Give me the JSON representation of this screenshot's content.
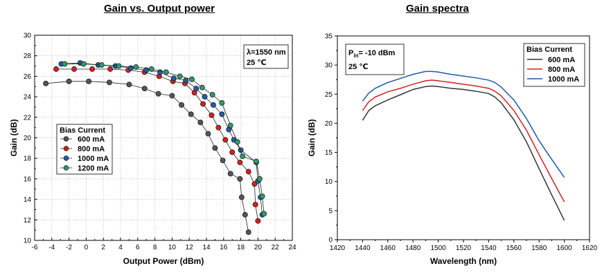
{
  "titles": {
    "left": "Gain vs. Output power",
    "right": "Gain spectra"
  },
  "chart_data": [
    {
      "type": "scatter",
      "title": "Gain vs. Output power",
      "xlabel": "Output Power (dBm)",
      "ylabel": "Gain (dB)",
      "xlim": [
        -6,
        24
      ],
      "ylim": [
        10,
        30
      ],
      "xticks": [
        "-6",
        "-4",
        "-2",
        "0",
        "2",
        "4",
        "6",
        "8",
        "10",
        "12",
        "14",
        "16",
        "18",
        "20",
        "22",
        "24"
      ],
      "yticks": [
        "10",
        "12",
        "14",
        "16",
        "18",
        "20",
        "22",
        "24",
        "26",
        "28",
        "30"
      ],
      "grid": true,
      "legend_title": "Bias Current",
      "legend_position": "lower-left",
      "annotation": [
        "λ=1550 nm",
        "25 ℃"
      ],
      "series": [
        {
          "name": "600 mA",
          "color": "#555555",
          "x": [
            -4.7,
            -2.0,
            0.3,
            2.7,
            5.0,
            6.8,
            8.4,
            10.0,
            11.1,
            12.2,
            13.3,
            14.2,
            15.0,
            15.9,
            16.8,
            17.9,
            18.1,
            18.5,
            18.9
          ],
          "y": [
            25.3,
            25.5,
            25.5,
            25.4,
            25.2,
            24.8,
            24.3,
            24.1,
            23.2,
            22.3,
            21.5,
            20.4,
            19.0,
            17.8,
            16.5,
            16.0,
            14.2,
            12.5,
            10.8
          ]
        },
        {
          "name": "800 mA",
          "color": "#d42020",
          "x": [
            -3.5,
            -1.4,
            0.7,
            2.8,
            4.9,
            6.8,
            8.5,
            10.1,
            11.5,
            12.6,
            13.6,
            14.6,
            15.4,
            16.2,
            17.0,
            17.9,
            18.9,
            19.6,
            19.7,
            20.0
          ],
          "y": [
            26.7,
            26.7,
            26.7,
            26.7,
            26.6,
            26.4,
            26.0,
            25.5,
            25.3,
            24.4,
            23.3,
            22.2,
            21.0,
            19.8,
            18.6,
            17.6,
            16.7,
            15.5,
            13.5,
            11.9
          ]
        },
        {
          "name": "1000 mA",
          "color": "#1f5fa8",
          "x": [
            -2.9,
            -0.7,
            1.4,
            3.4,
            5.2,
            7.0,
            8.6,
            10.2,
            11.6,
            12.8,
            13.8,
            14.8,
            15.8,
            16.6,
            17.2,
            18.0,
            19.8,
            20.0,
            20.3,
            20.5
          ],
          "y": [
            27.2,
            27.3,
            27.1,
            27.0,
            26.8,
            26.6,
            26.4,
            25.8,
            25.6,
            24.8,
            24.0,
            23.2,
            22.3,
            20.8,
            19.8,
            18.8,
            17.6,
            15.8,
            14.2,
            12.5
          ]
        },
        {
          "name": "1200 mA",
          "color": "#2e9a6a",
          "x": [
            -2.5,
            -0.3,
            1.8,
            3.8,
            5.8,
            7.6,
            9.3,
            10.9,
            12.3,
            13.5,
            14.7,
            15.8,
            16.8,
            17.6,
            18.2,
            19.8,
            20.2,
            20.5,
            20.7
          ],
          "y": [
            27.2,
            27.2,
            27.1,
            27.0,
            26.9,
            26.7,
            26.4,
            26.0,
            25.7,
            24.9,
            24.2,
            23.4,
            21.2,
            19.6,
            18.2,
            17.7,
            16.0,
            14.3,
            12.6
          ]
        }
      ]
    },
    {
      "type": "line",
      "title": "Gain spectra",
      "xlabel": "Wavelength (nm)",
      "ylabel": "Gain (dB)",
      "xlim": [
        1420,
        1620
      ],
      "ylim": [
        0,
        35
      ],
      "xticks": [
        "1420",
        "1440",
        "1460",
        "1480",
        "1500",
        "1520",
        "1540",
        "1560",
        "1580",
        "1600",
        "1620"
      ],
      "yticks": [
        "0",
        "5",
        "10",
        "15",
        "20",
        "25",
        "30",
        "35"
      ],
      "grid": false,
      "legend_title": "Bias Current",
      "legend_position": "top-right",
      "annotation": {
        "pin_prefix": "P",
        "pin_sub": "in",
        "pin_value": "= -10 dBm",
        "temp": "25 ℃"
      },
      "series": [
        {
          "name": "600 mA",
          "color": "#333333",
          "x": [
            1440,
            1445,
            1450,
            1460,
            1470,
            1480,
            1490,
            1495,
            1500,
            1510,
            1520,
            1530,
            1540,
            1545,
            1550,
            1560,
            1570,
            1580,
            1590,
            1600
          ],
          "y": [
            20.5,
            22.2,
            23.0,
            24.0,
            24.9,
            25.8,
            26.3,
            26.4,
            26.3,
            26.0,
            25.8,
            25.5,
            25.1,
            24.5,
            23.5,
            20.6,
            16.8,
            12.2,
            7.7,
            3.3
          ]
        },
        {
          "name": "800 mA",
          "color": "#d41f1f",
          "x": [
            1440,
            1445,
            1450,
            1460,
            1470,
            1480,
            1490,
            1495,
            1500,
            1510,
            1520,
            1530,
            1540,
            1545,
            1550,
            1560,
            1570,
            1580,
            1590,
            1600
          ],
          "y": [
            22.2,
            23.7,
            24.5,
            25.4,
            26.0,
            26.7,
            27.3,
            27.4,
            27.3,
            27.0,
            26.7,
            26.4,
            26.0,
            25.5,
            24.7,
            22.2,
            18.8,
            14.6,
            10.5,
            6.5
          ]
        },
        {
          "name": "1000 mA",
          "color": "#1f56a8",
          "x": [
            1440,
            1445,
            1450,
            1460,
            1470,
            1480,
            1490,
            1495,
            1500,
            1510,
            1520,
            1530,
            1540,
            1545,
            1550,
            1560,
            1570,
            1580,
            1590,
            1600
          ],
          "y": [
            23.8,
            25.2,
            26.0,
            27.0,
            27.7,
            28.4,
            28.9,
            28.9,
            28.8,
            28.4,
            28.1,
            27.8,
            27.4,
            27.0,
            26.2,
            24.0,
            20.8,
            17.0,
            13.8,
            10.7
          ]
        }
      ]
    }
  ]
}
